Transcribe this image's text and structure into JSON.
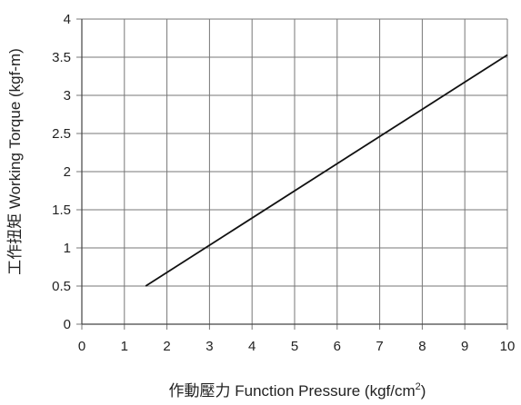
{
  "chart_data": {
    "type": "line",
    "title": "",
    "xlabel": "作動壓力 Function Pressure (kgf/cm",
    "xlabel_superscript": "2",
    "xlabel_suffix": ")",
    "ylabel": "工作扭矩 Working Torque (kgf-m)",
    "xlim": [
      0,
      10
    ],
    "ylim": [
      0,
      4
    ],
    "x_ticks": [
      "0",
      "1",
      "2",
      "3",
      "4",
      "5",
      "6",
      "7",
      "8",
      "9",
      "10"
    ],
    "y_ticks": [
      "0",
      "0.5",
      "1",
      "1.5",
      "2",
      "2.5",
      "3",
      "3.5",
      "4"
    ],
    "grid": true,
    "series": [
      {
        "x": [
          1.5,
          10
        ],
        "y": [
          0.5,
          3.53
        ]
      }
    ],
    "colors": {
      "line": "#111111",
      "grid": "#777777",
      "text": "#222222"
    }
  }
}
